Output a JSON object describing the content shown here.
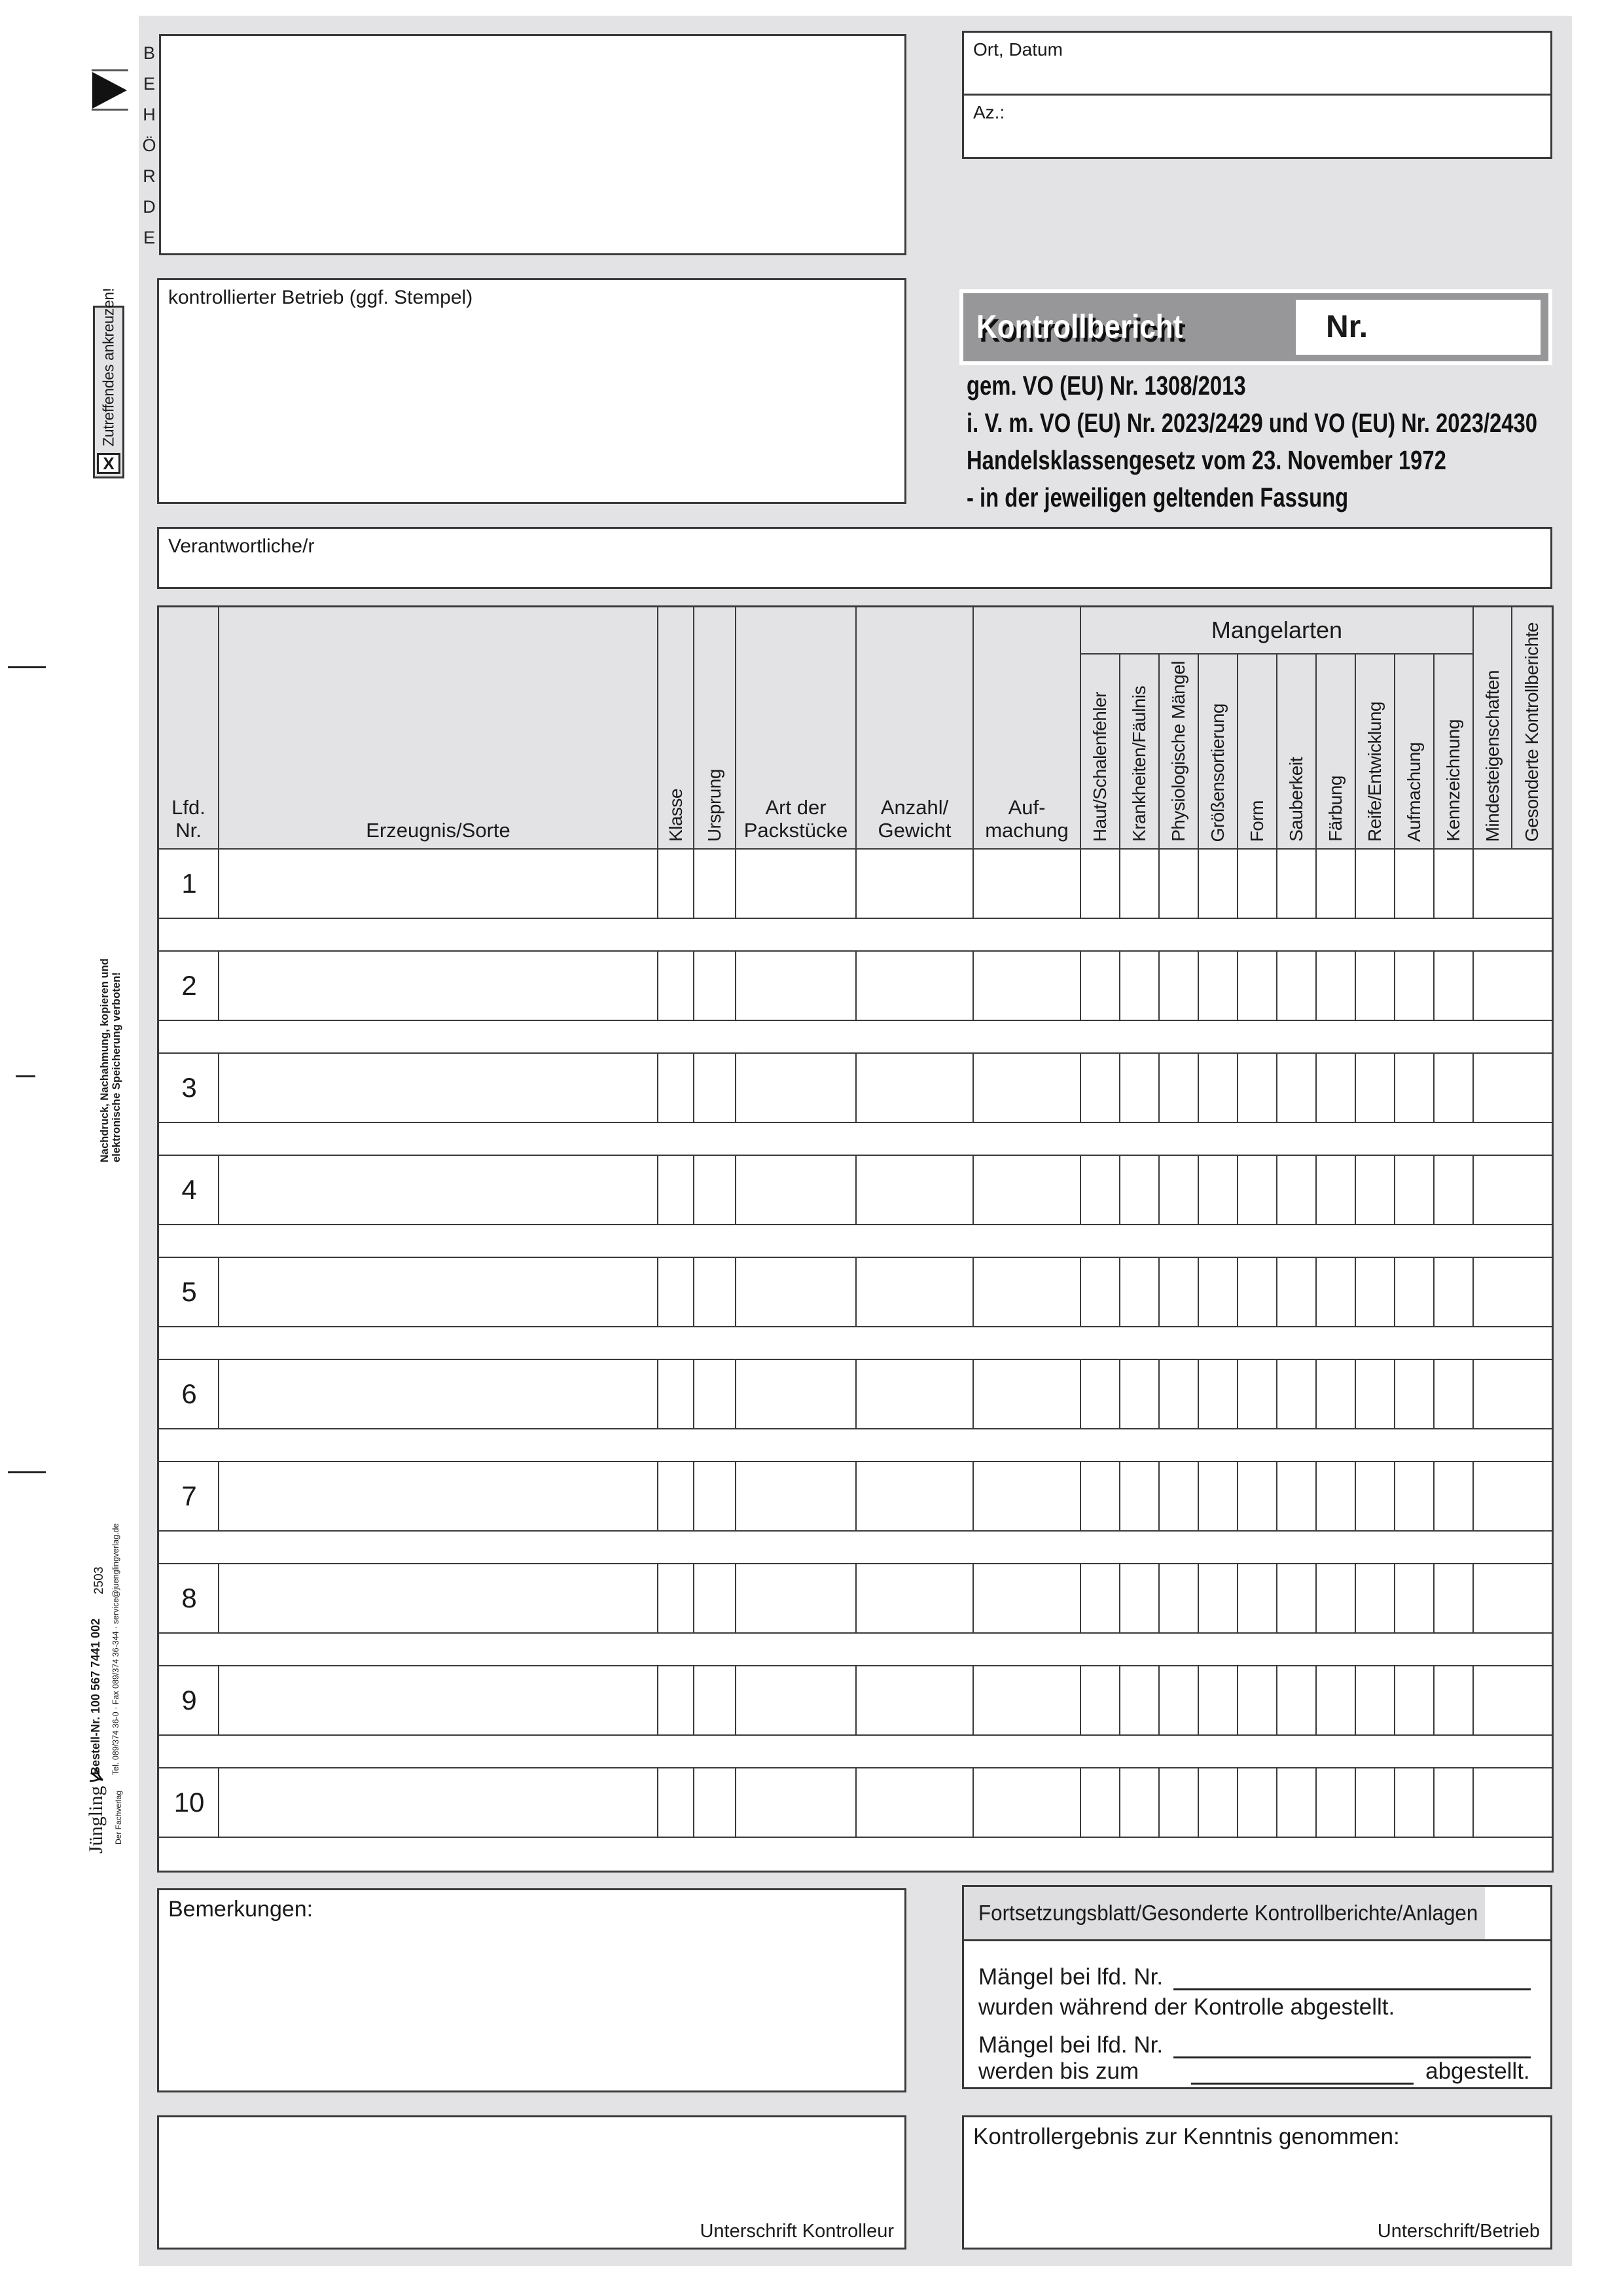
{
  "page": {
    "bg": "#e3e3e5",
    "band_gray": "#97979a",
    "line": "#3a3a3a",
    "label_band": "#dedee0"
  },
  "margin": {
    "authority": "BEHÖRDE",
    "check_note": "Zutreffendes ankreuzen!",
    "check_mark": "X",
    "forbidden_line1": "Nachdruck, Nachahmung, kopieren und",
    "forbidden_line2": "elektronische Speicherung verboten!",
    "code": "2503",
    "order_no": "Bestell-Nr. 100 567 7441 002",
    "contact": "Tel. 089/374 36-0 · Fax 089/374 36-344 · service@juenglingverlag.de",
    "publisher": "Jüngling",
    "publisher_tagline": "Der Fachverlag"
  },
  "header": {
    "ort_datum": "Ort, Datum",
    "az": "Az.:",
    "betrieb": "kontrollierter Betrieb (ggf. Stempel)",
    "title": "Kontrollbericht",
    "nr": "Nr.",
    "legal": [
      "gem. VO (EU) Nr. 1308/2013",
      "i. V. m. VO (EU) Nr. 2023/2429 und VO (EU) Nr. 2023/2430",
      "Handelsklassengesetz vom 23. November 1972",
      "- in der jeweiligen geltenden Fassung"
    ],
    "verantwortliche": "Verantwortliche/r"
  },
  "table": {
    "left_columns": [
      "Lfd.\nNr.",
      "Erzeugnis/Sorte",
      "Klasse",
      "Ursprung",
      "Art der\nPackstücke",
      "Anzahl/\nGewicht",
      "Auf-\nmachung"
    ],
    "group_label": "Mangelarten",
    "defect_columns": [
      "Haut/Schalenfehler",
      "Krankheiten/Fäulnis",
      "Physiologische Mängel",
      "Größensortierung",
      "Form",
      "Sauberkeit",
      "Färbung",
      "Reife/Entwicklung",
      "Aufmachung",
      "Kennzeichnung"
    ],
    "extra_columns": [
      "Mindesteigenschaften",
      "Gesonderte Kontrollberichte"
    ],
    "row_numbers": [
      "1",
      "2",
      "3",
      "4",
      "5",
      "6",
      "7",
      "8",
      "9",
      "10"
    ]
  },
  "footer": {
    "bemerkungen": "Bemerkungen:",
    "fortsetzung": "Fortsetzungsblatt/Gesonderte Kontrollberichte/Anlagen",
    "maengel1a": "Mängel bei lfd. Nr.",
    "maengel1b": "wurden während der Kontrolle abgestellt.",
    "maengel2a": "Mängel bei lfd. Nr.",
    "bis1": "werden bis zum",
    "bis2": "abgestellt.",
    "kontrollergebnis": "Kontrollergebnis zur Kenntnis genommen:",
    "sig_kontrolleur": "Unterschrift Kontrolleur",
    "sig_betrieb": "Unterschrift/Betrieb"
  }
}
